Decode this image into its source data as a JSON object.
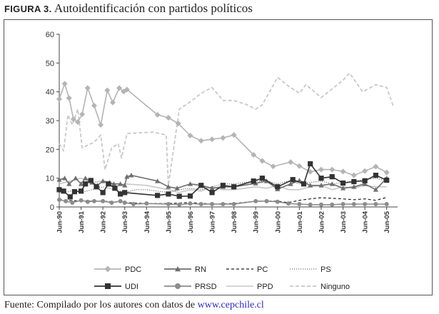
{
  "figure": {
    "label": "FIGURA 3.",
    "title": "Autoidentificación con partidos políticos"
  },
  "footer": {
    "text": "Fuente: Compilado por los autores con datos de",
    "link": "www.cepchile.cl"
  },
  "chart_data": {
    "type": "line",
    "title": "Autoidentificación con partidos políticos",
    "xlabel": "",
    "ylabel": "",
    "ylim": [
      0,
      60
    ],
    "yticks": [
      0,
      10,
      20,
      30,
      40,
      50,
      60
    ],
    "xlim": [
      1990.0,
      2005.5
    ],
    "xticks": [
      {
        "label": "Jun-90",
        "t": 1990.0
      },
      {
        "label": "Jun-91",
        "t": 1991.0
      },
      {
        "label": "Jun-92",
        "t": 1992.0
      },
      {
        "label": "Jun-93",
        "t": 1993.0
      },
      {
        "label": "Jun-94",
        "t": 1994.0
      },
      {
        "label": "Jun-95",
        "t": 1995.0
      },
      {
        "label": "Jun-96",
        "t": 1996.0
      },
      {
        "label": "Jun-97",
        "t": 1997.0
      },
      {
        "label": "Jun-98",
        "t": 1998.0
      },
      {
        "label": "Jun-99",
        "t": 1999.0
      },
      {
        "label": "Jun-00",
        "t": 2000.0
      },
      {
        "label": "Jun-01",
        "t": 2001.0
      },
      {
        "label": "Jun-02",
        "t": 2002.0
      },
      {
        "label": "Jun-03",
        "t": 2003.0
      },
      {
        "label": "Jun-04",
        "t": 2004.0
      },
      {
        "label": "Jun-05",
        "t": 2005.0
      }
    ],
    "series": [
      {
        "name": "PDC",
        "style": "marker",
        "marker": "diamond",
        "color": "#b4b4b4",
        "points": [
          [
            1990.0,
            37.5
          ],
          [
            1990.25,
            42.8
          ],
          [
            1990.45,
            37.8
          ],
          [
            1990.65,
            30.5
          ],
          [
            1990.85,
            29.5
          ],
          [
            1991.05,
            32.2
          ],
          [
            1991.3,
            41.3
          ],
          [
            1991.6,
            35.2
          ],
          [
            1991.9,
            28.5
          ],
          [
            1992.2,
            40.5
          ],
          [
            1992.45,
            36.3
          ],
          [
            1992.75,
            41.3
          ],
          [
            1992.95,
            40.1
          ],
          [
            1993.1,
            40.8
          ],
          [
            1994.5,
            32
          ],
          [
            1995.0,
            31
          ],
          [
            1995.45,
            29
          ],
          [
            1996.0,
            24.8
          ],
          [
            1996.5,
            23
          ],
          [
            1997.0,
            23.5
          ],
          [
            1997.5,
            24
          ],
          [
            1998.0,
            25
          ],
          [
            1998.9,
            18.1
          ],
          [
            1999.3,
            16
          ],
          [
            1999.8,
            14.1
          ],
          [
            2000.6,
            15.6
          ],
          [
            2001.0,
            14.2
          ],
          [
            2001.5,
            12.2
          ],
          [
            2002.0,
            13
          ],
          [
            2002.5,
            13
          ],
          [
            2003.0,
            12.3
          ],
          [
            2003.5,
            11
          ],
          [
            2004.0,
            12.5
          ],
          [
            2004.5,
            14
          ],
          [
            2005.0,
            12
          ]
        ]
      },
      {
        "name": "RN",
        "style": "marker",
        "marker": "triangle",
        "color": "#6e6e6e",
        "points": [
          [
            1990.0,
            9.5
          ],
          [
            1990.25,
            10
          ],
          [
            1990.45,
            8
          ],
          [
            1990.75,
            10
          ],
          [
            1991.0,
            8
          ],
          [
            1991.2,
            10
          ],
          [
            1991.5,
            8.5
          ],
          [
            1991.75,
            7.5
          ],
          [
            1992.0,
            9
          ],
          [
            1992.3,
            8.5
          ],
          [
            1992.5,
            8
          ],
          [
            1992.8,
            8
          ],
          [
            1993.0,
            7.5
          ],
          [
            1993.1,
            10.5
          ],
          [
            1993.3,
            11
          ],
          [
            1994.5,
            9
          ],
          [
            1995.0,
            7
          ],
          [
            1995.4,
            6.5
          ],
          [
            1996.0,
            8
          ],
          [
            1996.5,
            7.5
          ],
          [
            1997.0,
            6.5
          ],
          [
            1997.5,
            7
          ],
          [
            1998.0,
            7
          ],
          [
            1999.0,
            8.2
          ],
          [
            1999.5,
            9
          ],
          [
            2000.0,
            6.2
          ],
          [
            2000.6,
            8
          ],
          [
            2001.0,
            9.2
          ],
          [
            2001.5,
            7.5
          ],
          [
            2002.0,
            7.5
          ],
          [
            2002.5,
            8
          ],
          [
            2003.0,
            6.5
          ],
          [
            2003.5,
            7
          ],
          [
            2004.0,
            8
          ],
          [
            2004.5,
            6
          ],
          [
            2005.0,
            10
          ]
        ]
      },
      {
        "name": "PC",
        "style": "line",
        "dash": "4,3",
        "color": "#222222",
        "width": 1.2,
        "points": [
          [
            1990.0,
            2.5
          ],
          [
            1991.0,
            2
          ],
          [
            1992.0,
            2
          ],
          [
            1993.0,
            1.5
          ],
          [
            1994.0,
            1.2
          ],
          [
            1995.0,
            1.2
          ],
          [
            1996.0,
            1.5
          ],
          [
            1997.0,
            1
          ],
          [
            1998.0,
            1.2
          ],
          [
            1999.0,
            2
          ],
          [
            2000.0,
            2.0
          ],
          [
            2000.5,
            1.5
          ],
          [
            2001.0,
            2.3
          ],
          [
            2001.5,
            2.8
          ],
          [
            2002.0,
            3.2
          ],
          [
            2002.5,
            3
          ],
          [
            2003.0,
            2.8
          ],
          [
            2003.5,
            2.5
          ],
          [
            2004.0,
            2.8
          ],
          [
            2004.5,
            2.3
          ],
          [
            2005.0,
            3.3
          ]
        ]
      },
      {
        "name": "PS",
        "style": "line",
        "dash": "1.2,1.8",
        "color": "#555555",
        "width": 1,
        "points": [
          [
            1990.0,
            5
          ],
          [
            1990.5,
            5.5
          ],
          [
            1991.0,
            5
          ],
          [
            1991.5,
            6
          ],
          [
            1992.0,
            7
          ],
          [
            1992.5,
            6
          ],
          [
            1993.0,
            5
          ],
          [
            1993.5,
            6
          ],
          [
            1994.0,
            6
          ],
          [
            1995.0,
            5
          ],
          [
            1995.5,
            6
          ],
          [
            1996.0,
            6.5
          ],
          [
            1996.5,
            6
          ],
          [
            1997.0,
            7
          ],
          [
            1997.5,
            8
          ],
          [
            1998.0,
            8
          ],
          [
            1999.0,
            9
          ],
          [
            1999.5,
            9
          ],
          [
            2000.0,
            8
          ],
          [
            2000.5,
            9
          ],
          [
            2001.0,
            8
          ],
          [
            2001.5,
            8.5
          ],
          [
            2002.0,
            9
          ],
          [
            2002.5,
            8
          ],
          [
            2003.0,
            8.5
          ],
          [
            2003.5,
            9
          ],
          [
            2004.0,
            9.5
          ],
          [
            2004.5,
            10
          ],
          [
            2005.0,
            9
          ]
        ]
      },
      {
        "name": "UDI",
        "style": "marker",
        "marker": "square",
        "color": "#333333",
        "points": [
          [
            1990.0,
            6
          ],
          [
            1990.2,
            5.5
          ],
          [
            1990.5,
            3.5
          ],
          [
            1990.7,
            5.3
          ],
          [
            1991.0,
            5.5
          ],
          [
            1991.2,
            8
          ],
          [
            1991.45,
            9.2
          ],
          [
            1991.7,
            7
          ],
          [
            1992.0,
            5
          ],
          [
            1992.25,
            8
          ],
          [
            1992.55,
            6.5
          ],
          [
            1992.8,
            4.5
          ],
          [
            1993.0,
            5
          ],
          [
            1994.5,
            4
          ],
          [
            1995.0,
            4.5
          ],
          [
            1995.5,
            3.7
          ],
          [
            1996.0,
            3.8
          ],
          [
            1996.5,
            7.5
          ],
          [
            1997.0,
            5
          ],
          [
            1997.5,
            7.5
          ],
          [
            1998.0,
            7
          ],
          [
            1998.9,
            9
          ],
          [
            1999.3,
            10
          ],
          [
            2000.0,
            7
          ],
          [
            2000.7,
            9.5
          ],
          [
            2001.2,
            8
          ],
          [
            2001.5,
            15
          ],
          [
            2002.0,
            10
          ],
          [
            2002.5,
            10.5
          ],
          [
            2003.0,
            8.3
          ],
          [
            2003.5,
            8.8
          ],
          [
            2004.0,
            9.1
          ],
          [
            2004.5,
            11
          ],
          [
            2005.0,
            9.3
          ]
        ]
      },
      {
        "name": "PRSD",
        "style": "marker",
        "marker": "circle",
        "color": "#8c8c8c",
        "points": [
          [
            1990.0,
            2.5
          ],
          [
            1990.3,
            2
          ],
          [
            1990.6,
            1.5
          ],
          [
            1991.0,
            2.3
          ],
          [
            1991.3,
            1.8
          ],
          [
            1991.6,
            2
          ],
          [
            1992.0,
            2
          ],
          [
            1992.4,
            1.5
          ],
          [
            1992.8,
            2
          ],
          [
            1993.0,
            1.5
          ],
          [
            1993.4,
            1
          ],
          [
            1994.0,
            1.2
          ],
          [
            1995.0,
            1
          ],
          [
            1995.5,
            0.8
          ],
          [
            1996.0,
            1.2
          ],
          [
            1996.5,
            1
          ],
          [
            1997.0,
            1
          ],
          [
            1997.5,
            1
          ],
          [
            1998.0,
            1
          ],
          [
            1999.0,
            2
          ],
          [
            1999.5,
            2
          ],
          [
            2000.0,
            1.8
          ],
          [
            2000.5,
            1.2
          ],
          [
            2001.0,
            1
          ],
          [
            2001.5,
            0.8
          ],
          [
            2002.0,
            0.8
          ],
          [
            2002.5,
            0.8
          ],
          [
            2003.0,
            1
          ],
          [
            2003.5,
            1
          ],
          [
            2004.0,
            1
          ],
          [
            2004.5,
            1
          ],
          [
            2005.0,
            1
          ]
        ]
      },
      {
        "name": "PPD",
        "style": "line",
        "dash": "",
        "color": "#c8c8c8",
        "width": 1.6,
        "points": [
          [
            1990.0,
            8
          ],
          [
            1990.5,
            9
          ],
          [
            1991.0,
            10
          ],
          [
            1991.5,
            8.5
          ],
          [
            1992.0,
            9
          ],
          [
            1992.5,
            7
          ],
          [
            1993.0,
            8
          ],
          [
            1994.0,
            7.5
          ],
          [
            1995.0,
            6
          ],
          [
            1995.5,
            5
          ],
          [
            1996.0,
            6
          ],
          [
            1996.5,
            5.5
          ],
          [
            1997.0,
            7
          ],
          [
            1997.5,
            6
          ],
          [
            1998.0,
            6
          ],
          [
            1999.0,
            7
          ],
          [
            1999.5,
            6.5
          ],
          [
            2000.0,
            7.5
          ],
          [
            2000.5,
            6
          ],
          [
            2001.0,
            6
          ],
          [
            2001.5,
            7
          ],
          [
            2002.0,
            7.5
          ],
          [
            2002.5,
            6
          ],
          [
            2003.0,
            7
          ],
          [
            2003.5,
            6.5
          ],
          [
            2004.0,
            7.5
          ],
          [
            2004.5,
            7
          ],
          [
            2005.0,
            7
          ]
        ]
      },
      {
        "name": "Ninguno",
        "style": "line",
        "dash": "5,3",
        "color": "#c8c8c8",
        "width": 1.8,
        "points": [
          [
            1990.0,
            22
          ],
          [
            1990.2,
            19.5
          ],
          [
            1990.4,
            32
          ],
          [
            1990.6,
            28.5
          ],
          [
            1990.85,
            34
          ],
          [
            1991.05,
            20.5
          ],
          [
            1991.3,
            21.5
          ],
          [
            1991.6,
            22.5
          ],
          [
            1991.9,
            25
          ],
          [
            1992.1,
            13
          ],
          [
            1992.4,
            20.5
          ],
          [
            1992.7,
            22
          ],
          [
            1992.85,
            17
          ],
          [
            1993.1,
            25.5
          ],
          [
            1994.3,
            26
          ],
          [
            1994.9,
            25
          ],
          [
            1995.0,
            7.5
          ],
          [
            1995.5,
            34
          ],
          [
            1996.0,
            36.5
          ],
          [
            1996.5,
            39.5
          ],
          [
            1997.0,
            41.5
          ],
          [
            1997.5,
            37
          ],
          [
            1998.0,
            37
          ],
          [
            1998.6,
            35.5
          ],
          [
            1999.0,
            34
          ],
          [
            1999.3,
            35.5
          ],
          [
            2000.0,
            45
          ],
          [
            2000.5,
            42
          ],
          [
            2001.0,
            39.5
          ],
          [
            2001.3,
            42.5
          ],
          [
            2002.0,
            38
          ],
          [
            2002.5,
            41
          ],
          [
            2003.0,
            44
          ],
          [
            2003.3,
            46.5
          ],
          [
            2003.9,
            40
          ],
          [
            2004.5,
            42.5
          ],
          [
            2005.0,
            41.5
          ],
          [
            2005.3,
            35
          ]
        ]
      }
    ],
    "legend": {
      "placement": "bottom",
      "rows": [
        [
          "PDC",
          "RN",
          "PC",
          "PS"
        ],
        [
          "UDI",
          "PRSD",
          "PPD",
          "Ninguno"
        ]
      ]
    }
  }
}
